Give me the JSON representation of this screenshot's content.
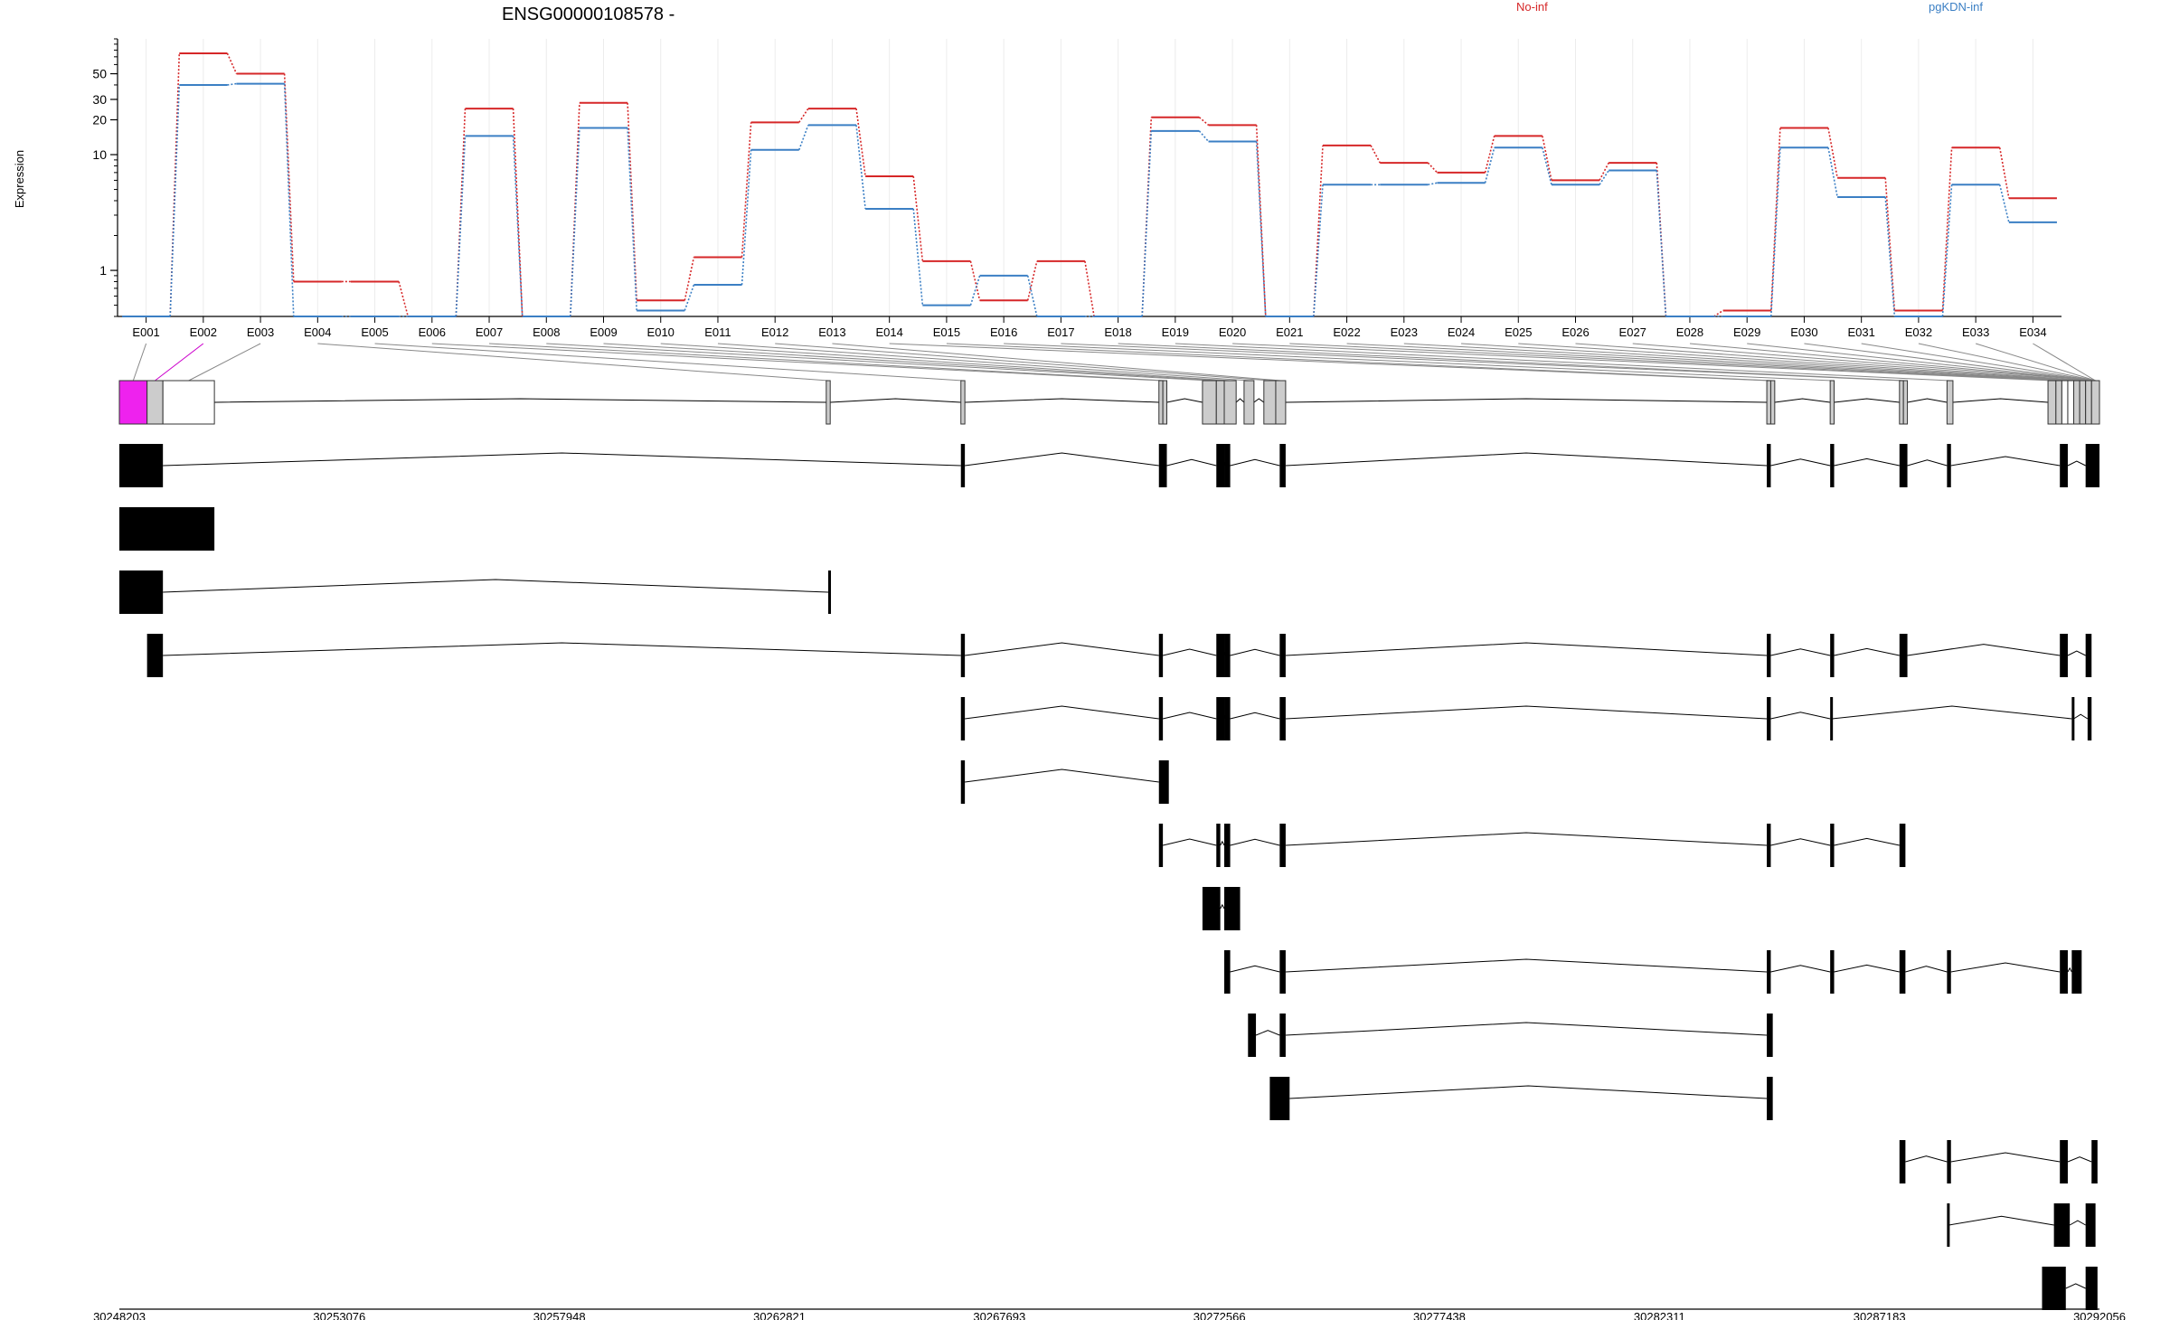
{
  "chart_data": {
    "type": "line",
    "title": "ENSG00000108578 -",
    "ylabel": "Expression",
    "yscale": "log",
    "ylim": [
      0.4,
      100
    ],
    "yticks": [
      1,
      10,
      20,
      30,
      50
    ],
    "grid": true,
    "legend_placement": "top",
    "categories": [
      "E001",
      "E002",
      "E003",
      "E004",
      "E005",
      "E006",
      "E007",
      "E008",
      "E009",
      "E010",
      "E011",
      "E012",
      "E013",
      "E014",
      "E015",
      "E016",
      "E017",
      "E018",
      "E019",
      "E020",
      "E021",
      "E022",
      "E023",
      "E024",
      "E025",
      "E026",
      "E027",
      "E028",
      "E029",
      "E030",
      "E031",
      "E032",
      "E033",
      "E034"
    ],
    "series": [
      {
        "name": "No-inf",
        "color": "#d62728",
        "values": [
          0.4,
          75,
          50,
          0.8,
          0.8,
          0.4,
          25,
          0.4,
          28,
          0.55,
          1.3,
          19,
          25,
          6.5,
          1.2,
          0.55,
          1.2,
          0.4,
          21,
          18,
          0.4,
          12,
          8.5,
          7,
          14.5,
          6,
          8.5,
          0.4,
          0.45,
          17,
          6.3,
          0.45,
          11.5,
          4.2
        ]
      },
      {
        "name": "pgKDN-inf",
        "color": "#3b7fc4",
        "values": [
          0.4,
          40,
          41,
          0.4,
          0.4,
          0.4,
          14.5,
          0.4,
          17,
          0.45,
          0.75,
          11,
          18,
          3.4,
          0.5,
          0.9,
          0.4,
          0.4,
          16,
          13,
          0.4,
          5.5,
          5.5,
          5.7,
          11.5,
          5.5,
          7.3,
          0.4,
          0.4,
          11.5,
          4.3,
          0.4,
          5.5,
          2.6
        ]
      }
    ],
    "genomic_axis": {
      "ticks": [
        "30248203",
        "30253076",
        "30257948",
        "30262821",
        "30267693",
        "30272566",
        "30277438",
        "30282311",
        "30287183",
        "30292056"
      ]
    }
  }
}
